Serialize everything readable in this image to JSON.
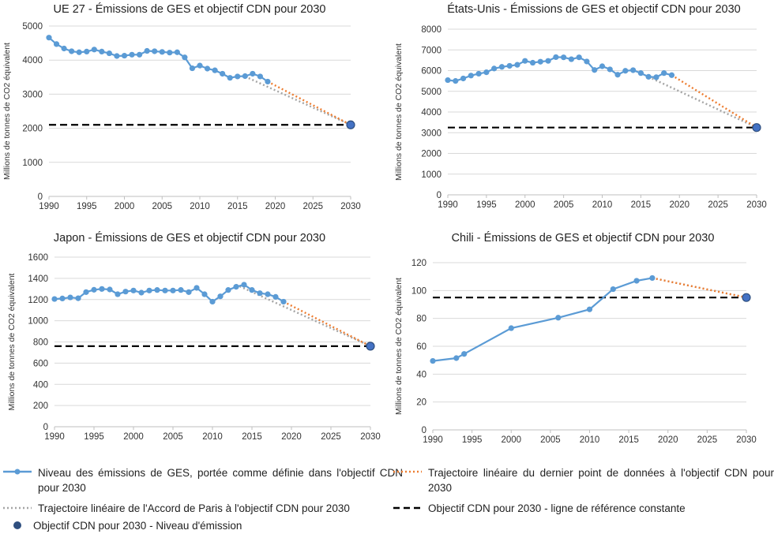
{
  "chart_data": [
    {
      "type": "line",
      "title": "UE 27 - Émissions de GES et objectif CDN pour 2030",
      "ylabel": "Millions de tonnes de CO2 équivalent",
      "xlim": [
        1990,
        2030
      ],
      "ylim": [
        0,
        5000
      ],
      "xticks": [
        "1990",
        "1995",
        "2000",
        "2005",
        "2010",
        "2015",
        "2020",
        "2025",
        "2030"
      ],
      "yticks": [
        "0",
        "1000",
        "2000",
        "3000",
        "4000",
        "5000"
      ],
      "grid": true,
      "series": [
        {
          "name": "Niveau des émissions de GES, portée comme définie dans l'objectif CDN pour 2030",
          "x": [
            1990,
            1991,
            1992,
            1993,
            1994,
            1995,
            1996,
            1997,
            1998,
            1999,
            2000,
            2001,
            2002,
            2003,
            2004,
            2005,
            2006,
            2007,
            2008,
            2009,
            2010,
            2011,
            2012,
            2013,
            2014,
            2015,
            2016,
            2017,
            2018,
            2019
          ],
          "y": [
            4660,
            4470,
            4340,
            4260,
            4230,
            4250,
            4310,
            4250,
            4200,
            4120,
            4130,
            4160,
            4160,
            4270,
            4260,
            4240,
            4220,
            4230,
            4080,
            3760,
            3840,
            3750,
            3700,
            3600,
            3480,
            3520,
            3530,
            3600,
            3520,
            3370
          ]
        },
        {
          "name": "Trajectoire linéaire du dernier point de données à l'objectif CDN pour 2030",
          "x": [
            2019,
            2030
          ],
          "y": [
            3370,
            2100
          ]
        },
        {
          "name": "Trajectoire linéaire de l'Accord de Paris à l'objectif CDN pour 2030",
          "x": [
            2016,
            2030
          ],
          "y": [
            3520,
            2100
          ]
        }
      ],
      "target": {
        "x": 2030,
        "y": 2100
      }
    },
    {
      "type": "line",
      "title": "États-Unis - Émissions de GES et objectif CDN pour 2030",
      "ylabel": "Millions de tonnes de CO2 équivalent",
      "xlim": [
        1990,
        2030
      ],
      "ylim": [
        0,
        8000
      ],
      "xticks": [
        "1990",
        "1995",
        "2000",
        "2005",
        "2010",
        "2015",
        "2020",
        "2025",
        "2030"
      ],
      "yticks": [
        "0",
        "1000",
        "2000",
        "3000",
        "4000",
        "5000",
        "6000",
        "7000",
        "8000"
      ],
      "grid": true,
      "series": [
        {
          "name": "Niveau des émissions de GES, portée comme définie dans l'objectif CDN pour 2030",
          "x": [
            1990,
            1991,
            1992,
            1993,
            1994,
            1995,
            1996,
            1997,
            1998,
            1999,
            2000,
            2001,
            2002,
            2003,
            2004,
            2005,
            2006,
            2007,
            2008,
            2009,
            2010,
            2011,
            2012,
            2013,
            2014,
            2015,
            2016,
            2017,
            2018,
            2019
          ],
          "y": [
            5540,
            5500,
            5620,
            5760,
            5850,
            5920,
            6100,
            6180,
            6230,
            6280,
            6470,
            6380,
            6430,
            6470,
            6650,
            6640,
            6550,
            6640,
            6440,
            6030,
            6210,
            6060,
            5800,
            5990,
            6020,
            5880,
            5700,
            5680,
            5880,
            5780
          ]
        },
        {
          "name": "Trajectoire linéaire du dernier point de données à l'objectif CDN pour 2030",
          "x": [
            2019,
            2030
          ],
          "y": [
            5780,
            3250
          ]
        },
        {
          "name": "Trajectoire linéaire de l'Accord de Paris à l'objectif CDN pour 2030",
          "x": [
            2016,
            2030
          ],
          "y": [
            5700,
            3250
          ]
        }
      ],
      "target": {
        "x": 2030,
        "y": 3250
      }
    },
    {
      "type": "line",
      "title": "Japon - Émissions de GES et objectif CDN pour 2030",
      "ylabel": "Millions de tonnes de CO2 équivalent",
      "xlim": [
        1990,
        2030
      ],
      "ylim": [
        0,
        1600
      ],
      "xticks": [
        "1990",
        "1995",
        "2000",
        "2005",
        "2010",
        "2015",
        "2020",
        "2025",
        "2030"
      ],
      "yticks": [
        "0",
        "200",
        "400",
        "600",
        "800",
        "1000",
        "1200",
        "1400",
        "1600"
      ],
      "grid": true,
      "series": [
        {
          "name": "Niveau des émissions de GES, portée comme définie dans l'objectif CDN pour 2030",
          "x": [
            1990,
            1991,
            1992,
            1993,
            1994,
            1995,
            1996,
            1997,
            1998,
            1999,
            2000,
            2001,
            2002,
            2003,
            2004,
            2005,
            2006,
            2007,
            2008,
            2009,
            2010,
            2011,
            2012,
            2013,
            2014,
            2015,
            2016,
            2017,
            2018,
            2019
          ],
          "y": [
            1205,
            1210,
            1220,
            1212,
            1270,
            1292,
            1300,
            1295,
            1250,
            1275,
            1285,
            1265,
            1285,
            1290,
            1285,
            1285,
            1290,
            1270,
            1310,
            1250,
            1180,
            1230,
            1290,
            1320,
            1340,
            1290,
            1260,
            1250,
            1225,
            1180
          ]
        },
        {
          "name": "Trajectoire linéaire du dernier point de données à l'objectif CDN pour 2030",
          "x": [
            2019,
            2030
          ],
          "y": [
            1180,
            760
          ]
        },
        {
          "name": "Trajectoire linéaire de l'Accord de Paris à l'objectif CDN pour 2030",
          "x": [
            2013,
            2030
          ],
          "y": [
            1340,
            760
          ]
        }
      ],
      "target": {
        "x": 2030,
        "y": 760
      }
    },
    {
      "type": "line",
      "title": "Chili - Émissions de GES et objectif CDN pour 2030",
      "ylabel": "Millions de tonnes de CO2 équivalent",
      "xlim": [
        1990,
        2030
      ],
      "ylim": [
        0,
        120
      ],
      "xticks": [
        "1990",
        "1995",
        "2000",
        "2005",
        "2010",
        "2015",
        "2020",
        "2025",
        "2030"
      ],
      "yticks": [
        "0",
        "20",
        "40",
        "60",
        "80",
        "100",
        "120"
      ],
      "grid": true,
      "series": [
        {
          "name": "Niveau des émissions de GES, portée comme définie dans l'objectif CDN pour 2030",
          "x": [
            1990,
            1993,
            1994,
            2000,
            2006,
            2010,
            2013,
            2016,
            2018
          ],
          "y": [
            49.5,
            51.5,
            54.5,
            73,
            80.5,
            86.5,
            101,
            107,
            109
          ]
        },
        {
          "name": "Trajectoire linéaire du dernier point de données à l'objectif CDN pour 2030",
          "x": [
            2018,
            2030
          ],
          "y": [
            109,
            95
          ]
        },
        {
          "name": "Trajectoire linéaire de l'Accord de Paris à l'objectif CDN pour 2030",
          "x": [
            2018,
            2030
          ],
          "y": [
            109,
            95
          ]
        }
      ],
      "target": {
        "x": 2030,
        "y": 95
      }
    }
  ],
  "legend": {
    "emissions": "Niveau des émissions de GES, portée comme définie dans l'objectif CDN pour 2030",
    "trajectory_last": "Trajectoire linéaire du dernier point de données à l'objectif CDN pour 2030",
    "trajectory_paris": "Trajectoire linéaire de l'Accord de Paris à l'objectif CDN pour 2030",
    "constant_line": "Objectif CDN pour 2030 - ligne de référence constante",
    "target_point": "Objectif CDN pour 2030 - Niveau d'émission"
  },
  "colors": {
    "emissions": "#5b9bd5",
    "trajectory_last": "#ed7d31",
    "trajectory_paris": "#a5a5a5",
    "reference": "#000000",
    "target_fill": "#4472c4",
    "target_edge": "#2f4f7f",
    "grid": "#d9d9d9"
  }
}
